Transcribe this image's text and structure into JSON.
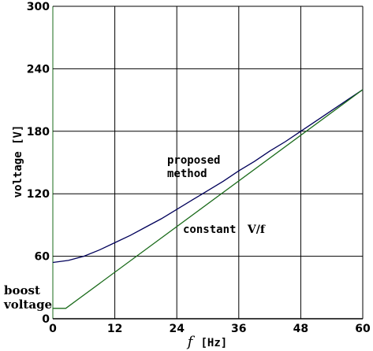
{
  "chart_data": {
    "type": "line",
    "title": "",
    "xlabel": "f [Hz]",
    "xlabel_parts": [
      "f",
      "[Hz]"
    ],
    "ylabel": "voltage [V]",
    "xlim": [
      0,
      60
    ],
    "ylim": [
      0,
      300
    ],
    "x_ticks": [
      0,
      12,
      24,
      36,
      48,
      60
    ],
    "y_ticks": [
      0,
      60,
      120,
      180,
      240,
      300
    ],
    "x_tick_labels": [
      "0",
      "12",
      "24",
      "36",
      "48",
      "60"
    ],
    "y_tick_labels": [
      "0",
      "60",
      "120",
      "180",
      "240",
      "300"
    ],
    "grid": true,
    "series": [
      {
        "name": "proposed method",
        "color": "#00005a",
        "x": [
          0,
          3,
          6,
          9,
          12,
          15,
          18,
          21,
          24,
          27,
          30,
          33,
          36,
          39,
          42,
          45,
          48,
          51,
          54,
          57,
          60
        ],
        "y": [
          54,
          56,
          60,
          66,
          73,
          80,
          88,
          96,
          105,
          114,
          123,
          132,
          142,
          151,
          161,
          170,
          180,
          190,
          200,
          210,
          220
        ]
      },
      {
        "name": "constant V/f",
        "color": "#1a6b1a",
        "x": [
          0,
          2.5,
          60
        ],
        "y": [
          10,
          10,
          220
        ]
      }
    ],
    "annotations": {
      "proposed_line1": "proposed",
      "proposed_line2": "method",
      "constant_text": "constant",
      "constant_ratio": "V/f",
      "boost_line1": "boost",
      "boost_line2": "voltage"
    },
    "colors": {
      "grid": "#000000",
      "y_axis": "#1a6b1a"
    }
  }
}
